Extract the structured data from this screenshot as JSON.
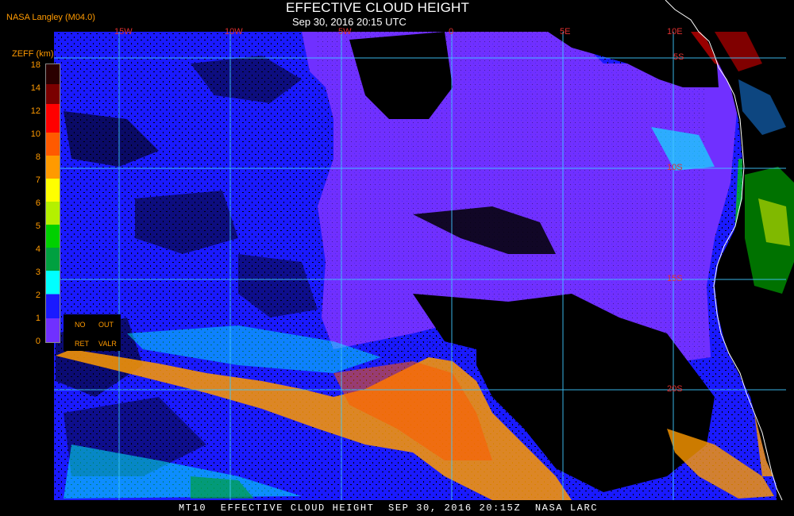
{
  "credit": "NASA Langley (M04.0)",
  "title": "EFFECTIVE CLOUD HEIGHT",
  "subtitle": "Sep 30, 2016 20:15 UTC",
  "footer": "MT10  EFFECTIVE CLOUD HEIGHT  SEP 30, 2016 20:15Z  NASA LARC",
  "legend": {
    "unit_label": "ZEFF (km)",
    "scale_labels": [
      "18",
      "14",
      "12",
      "10",
      "8",
      "7",
      "6",
      "5",
      "4",
      "3",
      "2",
      "1",
      "0"
    ],
    "no_retrieval_labels": [
      "NO",
      "OUT",
      "RET",
      "VALR"
    ],
    "colors": [
      "#2a0000",
      "#7a0000",
      "#ff0000",
      "#ff5a00",
      "#ff9a00",
      "#ffff00",
      "#b4f000",
      "#00d000",
      "#00a040",
      "#008a7a",
      "#00ffff",
      "#1a8cff",
      "#1a1aff",
      "#7030ff"
    ],
    "no_retrieval_color": "#000000"
  },
  "grid": {
    "longitude_labels": [
      "15W",
      "10W",
      "5W",
      "0",
      "5E",
      "10E"
    ],
    "latitude_labels": [
      "5S",
      "10S",
      "15S",
      "20S"
    ],
    "color": "#40c8ff"
  },
  "colors": {
    "cloud_low": "#1a1aff",
    "cloud_very_low": "#7030ff",
    "cloud_mid": "#ff9a00",
    "coast": "#ffffff",
    "label_red": "#e03030",
    "label_orange": "#ff9a00"
  }
}
